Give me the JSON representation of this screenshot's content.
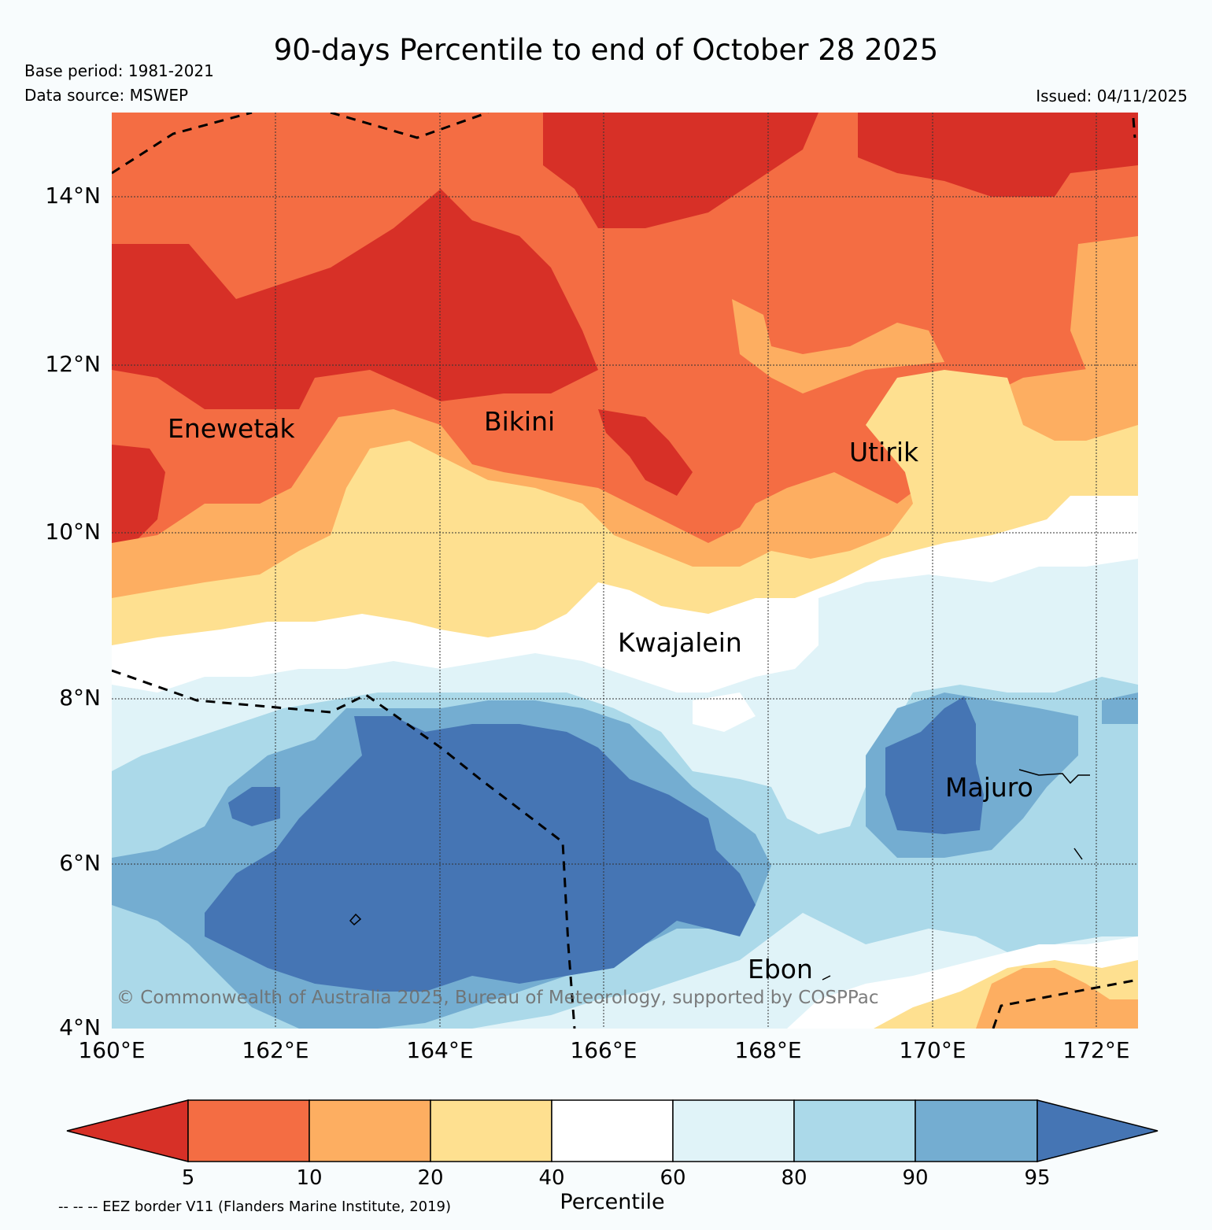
{
  "header": {
    "title": "90-days Percentile to end of October 28 2025",
    "base_period": "Base period: 1981-2021",
    "data_source": "Data source: MSWEP",
    "issued": "Issued: 04/11/2025"
  },
  "map": {
    "lat_labels": [
      "14°N",
      "12°N",
      "10°N",
      "8°N",
      "6°N",
      "4°N"
    ],
    "lon_labels": [
      "160°E",
      "162°E",
      "164°E",
      "166°E",
      "168°E",
      "170°E",
      "172°E"
    ],
    "places": {
      "enewetak": "Enewetak",
      "bikini": "Bikini",
      "utirik": "Utirik",
      "kwajalein": "Kwajalein",
      "majuro": "Majuro",
      "ebon": "Ebon"
    },
    "copyright": "© Commonwealth of Australia 2025, Bureau of Meteorology, supported by COSPPac"
  },
  "colorbar": {
    "ticks": [
      "5",
      "10",
      "20",
      "40",
      "60",
      "80",
      "90",
      "95"
    ],
    "title": "Percentile",
    "colors": [
      "#d73027",
      "#f46d43",
      "#fdae61",
      "#fee090",
      "#ffffff",
      "#e0f3f8",
      "#abd9e9",
      "#74add1",
      "#4575b4"
    ]
  },
  "footer": {
    "eez_note": "-- -- -- EEZ border V11 (Flanders Marine Institute, 2019)"
  }
}
